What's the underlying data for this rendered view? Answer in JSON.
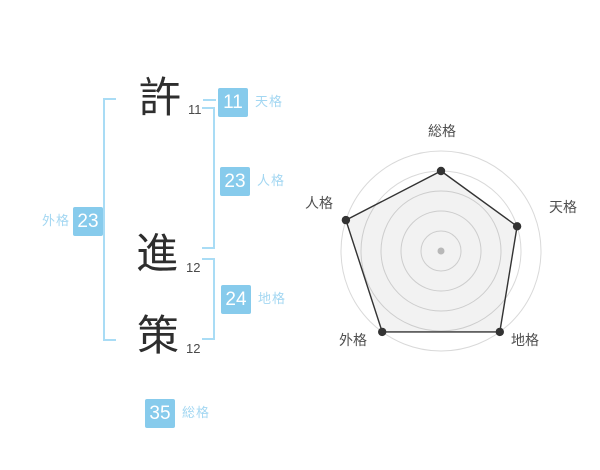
{
  "colors": {
    "badge_bg": "#87cbec",
    "badge_text": "#ffffff",
    "side_label": "#a3d7f2",
    "bracket": "#a9dcf5",
    "kanji_ink": "#2e2e2e",
    "stroke_ink": "#4a4a4a",
    "chart_grid": "#d9d9d9",
    "chart_line": "#333333",
    "chart_fill": "#000000",
    "chart_fill_opacity": 0.05,
    "chart_label": "#4f4f4f",
    "chart_center_dot": "#c2c2c2"
  },
  "name": {
    "characters": [
      {
        "char": "許",
        "strokes": "11"
      },
      {
        "char": "進",
        "strokes": "12"
      },
      {
        "char": "策",
        "strokes": "12"
      }
    ]
  },
  "badges": {
    "tenkaku": {
      "value": "11",
      "label": "天格"
    },
    "jinkaku": {
      "value": "23",
      "label": "人格"
    },
    "chikaku": {
      "value": "24",
      "label": "地格"
    },
    "soukaku": {
      "value": "35",
      "label": "総格"
    },
    "gaikaku": {
      "value": "23",
      "label": "外格"
    }
  },
  "chart_data": {
    "type": "radar",
    "title": "",
    "categories": [
      "総格",
      "天格",
      "地格",
      "外格",
      "人格"
    ],
    "values": [
      4,
      4,
      5,
      5,
      5
    ],
    "max": 5,
    "rings": 5,
    "start_angle_deg": 90,
    "direction": "clockwise",
    "grid": "circular",
    "legend_position": "none"
  }
}
